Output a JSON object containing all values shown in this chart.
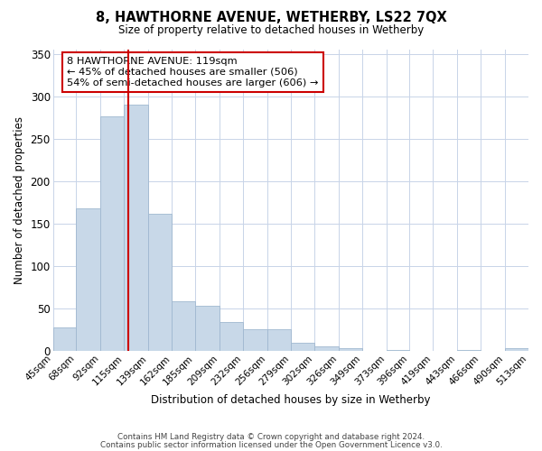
{
  "title": "8, HAWTHORNE AVENUE, WETHERBY, LS22 7QX",
  "subtitle": "Size of property relative to detached houses in Wetherby",
  "xlabel": "Distribution of detached houses by size in Wetherby",
  "ylabel": "Number of detached properties",
  "bar_color": "#c8d8e8",
  "bar_edge_color": "#a0b8d0",
  "vline_x": 119,
  "vline_color": "#cc0000",
  "annotation_lines": [
    "8 HAWTHORNE AVENUE: 119sqm",
    "← 45% of detached houses are smaller (506)",
    "54% of semi-detached houses are larger (606) →"
  ],
  "bin_edges": [
    45,
    68,
    92,
    115,
    139,
    162,
    185,
    209,
    232,
    256,
    279,
    302,
    326,
    349,
    373,
    396,
    419,
    443,
    466,
    490,
    513
  ],
  "bar_heights": [
    28,
    168,
    276,
    290,
    162,
    59,
    53,
    34,
    26,
    26,
    10,
    5,
    3,
    0,
    1,
    0,
    0,
    1,
    0,
    3
  ],
  "ylim": [
    0,
    355
  ],
  "yticks": [
    0,
    50,
    100,
    150,
    200,
    250,
    300,
    350
  ],
  "footer_line1": "Contains HM Land Registry data © Crown copyright and database right 2024.",
  "footer_line2": "Contains public sector information licensed under the Open Government Licence v3.0.",
  "background_color": "#ffffff",
  "grid_color": "#c8d4e8"
}
